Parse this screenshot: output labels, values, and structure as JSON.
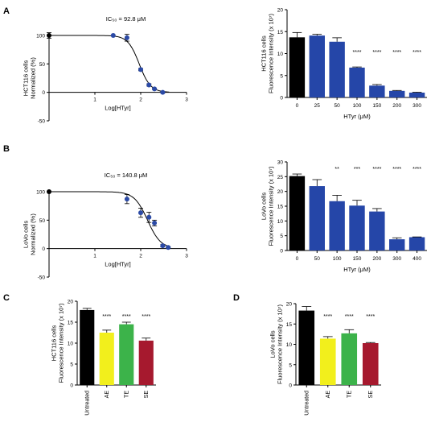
{
  "panel_labels": {
    "A": "A",
    "B": "B",
    "C": "C",
    "D": "D"
  },
  "colors": {
    "axis": "#000000",
    "black_bar": "#000000",
    "blue_bar": "#2546a8",
    "dot": "#2b4aa6",
    "yellow": "#f2ef1c",
    "green": "#3cb34a",
    "red": "#a6192e"
  },
  "chart_data": [
    {
      "id": "A_left",
      "type": "scatter",
      "title": "IC₅₀ = 92.8 μM",
      "ylabel": "HCT116 cells\nNormalized (%)",
      "xlabel": "Log[HTyr]",
      "xlim": [
        0,
        3
      ],
      "ylim": [
        -50,
        100
      ],
      "xticks": [
        "1",
        "2",
        "3"
      ],
      "yticks": [
        "-50",
        "0",
        "50",
        "100"
      ],
      "curve": {
        "bottom": 0,
        "top": 100,
        "logIC50": 1.9675,
        "hill": 3.5
      },
      "points": [
        {
          "x": 0,
          "y": 100,
          "err": 5,
          "color": "black"
        },
        {
          "x": 1.4,
          "y": 100,
          "err": 0,
          "color": "blue"
        },
        {
          "x": 1.7,
          "y": 96,
          "err": 6,
          "color": "blue"
        },
        {
          "x": 2.0,
          "y": 40,
          "err": 2,
          "color": "blue"
        },
        {
          "x": 2.18,
          "y": 13,
          "err": 2,
          "color": "blue"
        },
        {
          "x": 2.3,
          "y": 6,
          "err": 1,
          "color": "blue"
        },
        {
          "x": 2.48,
          "y": 0,
          "err": 1,
          "color": "blue"
        }
      ]
    },
    {
      "id": "A_right",
      "type": "bar",
      "ylabel": "HCT116 cells\nFluorescence Intensity (x 10⁷)",
      "xlabel": "HTyr (μM)",
      "ylim": [
        0,
        20
      ],
      "yticks": [
        "0",
        "5",
        "10",
        "15",
        "20"
      ],
      "categories": [
        "0",
        "25",
        "50",
        "100",
        "150",
        "200",
        "300"
      ],
      "values": [
        13.7,
        14.1,
        12.7,
        6.8,
        2.7,
        1.5,
        1.1
      ],
      "errors": [
        1.1,
        0.3,
        0.9,
        0.15,
        0.25,
        0.1,
        0.1
      ],
      "bar_colors": [
        "black",
        "blue",
        "blue",
        "blue",
        "blue",
        "blue",
        "blue"
      ],
      "significance": [
        "",
        "",
        "",
        "****",
        "****",
        "****",
        "****"
      ]
    },
    {
      "id": "B_left",
      "type": "scatter",
      "title": "IC₅₀ = 140.8 μM",
      "ylabel": "LoVo cells\nNormalized (%)",
      "xlabel": "Log[HTyr]",
      "xlim": [
        0,
        3
      ],
      "ylim": [
        -50,
        100
      ],
      "xticks": [
        "1",
        "2",
        "3"
      ],
      "yticks": [
        "-50",
        "0",
        "50",
        "100"
      ],
      "curve": {
        "bottom": 0,
        "top": 100,
        "logIC50": 2.1486,
        "hill": 3.0
      },
      "points": [
        {
          "x": 0,
          "y": 100,
          "err": 0,
          "color": "black"
        },
        {
          "x": 1.7,
          "y": 87,
          "err": 8,
          "color": "blue"
        },
        {
          "x": 2.0,
          "y": 63,
          "err": 8,
          "color": "blue"
        },
        {
          "x": 2.18,
          "y": 55,
          "err": 9,
          "color": "blue"
        },
        {
          "x": 2.3,
          "y": 45,
          "err": 5,
          "color": "blue"
        },
        {
          "x": 2.48,
          "y": 5,
          "err": 2,
          "color": "blue"
        },
        {
          "x": 2.6,
          "y": 2,
          "err": 1,
          "color": "blue"
        }
      ]
    },
    {
      "id": "B_right",
      "type": "bar",
      "ylabel": "LoVo cells\nFluorescence Intensity (x 10⁷)",
      "xlabel": "HTyr (μM)",
      "ylim": [
        0,
        30
      ],
      "yticks": [
        "0",
        "5",
        "10",
        "15",
        "20",
        "25",
        "30"
      ],
      "categories": [
        "0",
        "50",
        "100",
        "150",
        "200",
        "300",
        "400"
      ],
      "values": [
        25.2,
        21.8,
        16.7,
        15.2,
        13.2,
        3.8,
        4.5
      ],
      "errors": [
        0.7,
        2.2,
        2.0,
        1.8,
        1.0,
        0.5,
        0.1
      ],
      "bar_colors": [
        "black",
        "blue",
        "blue",
        "blue",
        "blue",
        "blue",
        "blue"
      ],
      "significance": [
        "",
        "",
        "**",
        "***",
        "****",
        "****",
        "****"
      ]
    },
    {
      "id": "C",
      "type": "bar",
      "ylabel": "HCT116 cells\nFluorescence Intensity (x 10⁷)",
      "ylim": [
        0,
        20
      ],
      "yticks": [
        "0",
        "5",
        "10",
        "15",
        "20"
      ],
      "categories": [
        "Untreated",
        "AE",
        "TE",
        "SE"
      ],
      "values": [
        17.9,
        12.5,
        14.5,
        10.6
      ],
      "errors": [
        0.4,
        0.6,
        0.5,
        0.6
      ],
      "bar_colors": [
        "black",
        "yellow",
        "green",
        "red"
      ],
      "significance": [
        "",
        "****",
        "****",
        "****"
      ]
    },
    {
      "id": "D",
      "type": "bar",
      "ylabel": "LoVo cells\nFluorescence Intensity (x 10⁷)",
      "ylim": [
        0,
        20
      ],
      "yticks": [
        "0",
        "5",
        "10",
        "15",
        "20"
      ],
      "categories": [
        "Untreated",
        "AE",
        "TE",
        "SE"
      ],
      "values": [
        18.3,
        11.4,
        12.7,
        10.3
      ],
      "errors": [
        1.0,
        0.5,
        0.9,
        0.15
      ],
      "bar_colors": [
        "black",
        "yellow",
        "green",
        "red"
      ],
      "significance": [
        "",
        "****",
        "****",
        "****"
      ]
    }
  ]
}
